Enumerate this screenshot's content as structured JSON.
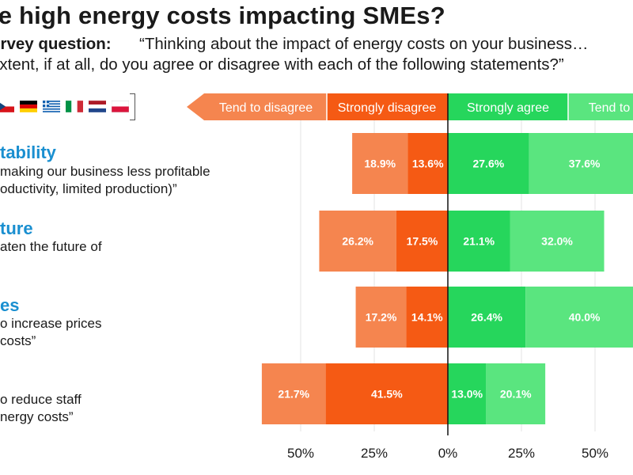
{
  "page": {
    "title": "are high energy costs impacting SMEs?",
    "question_label": "urvey question:",
    "question_line1": "“Thinking about the impact of energy costs on your business…",
    "question_line2": "extent, if at all, do you agree or disagree with each of the following statements?”"
  },
  "flags": [
    {
      "name": "czech-flag"
    },
    {
      "name": "germany-flag"
    },
    {
      "name": "greece-flag"
    },
    {
      "name": "italy-flag"
    },
    {
      "name": "netherlands-flag"
    },
    {
      "name": "poland-flag"
    }
  ],
  "statements": [
    {
      "title": "tability",
      "lines": [
        "making our business less profitable",
        "oductivity, limited production)”"
      ]
    },
    {
      "title": "ture",
      "lines": [
        "aten the future of"
      ]
    },
    {
      "title": "es",
      "lines": [
        "o increase prices",
        "costs”"
      ]
    },
    {
      "title": "",
      "lines": [
        "o reduce staff",
        "nergy costs”"
      ]
    }
  ],
  "colors": {
    "tend_to_disagree": "#f5854f",
    "strongly_disagree": "#f55a14",
    "strongly_agree": "#26d65c",
    "tend_to_agree": "#5ae57f",
    "title_blue": "#1a8fd0"
  },
  "chart_data": {
    "type": "bar",
    "orientation": "horizontal diverging",
    "categories": [
      "tability",
      "ture",
      "es",
      ""
    ],
    "series": [
      {
        "name": "Tend to disagree",
        "values": [
          18.9,
          26.2,
          17.2,
          21.7
        ],
        "side": "negative"
      },
      {
        "name": "Strongly disagree",
        "values": [
          13.6,
          17.5,
          14.1,
          41.5
        ],
        "side": "negative"
      },
      {
        "name": "Strongly agree",
        "values": [
          27.6,
          21.1,
          26.4,
          13.0
        ],
        "side": "positive"
      },
      {
        "name": "Tend to agree",
        "values": [
          37.6,
          32.0,
          40.0,
          20.1
        ],
        "side": "positive"
      }
    ],
    "legend_labels": [
      "Tend to disagree",
      "Strongly disagree",
      "Strongly agree",
      "Tend to"
    ],
    "xticks": [
      "50%",
      "25%",
      "0%",
      "25%",
      "50%"
    ],
    "xtick_values": [
      -50,
      -25,
      0,
      25,
      50
    ],
    "grid": true,
    "legend_position": "top"
  }
}
